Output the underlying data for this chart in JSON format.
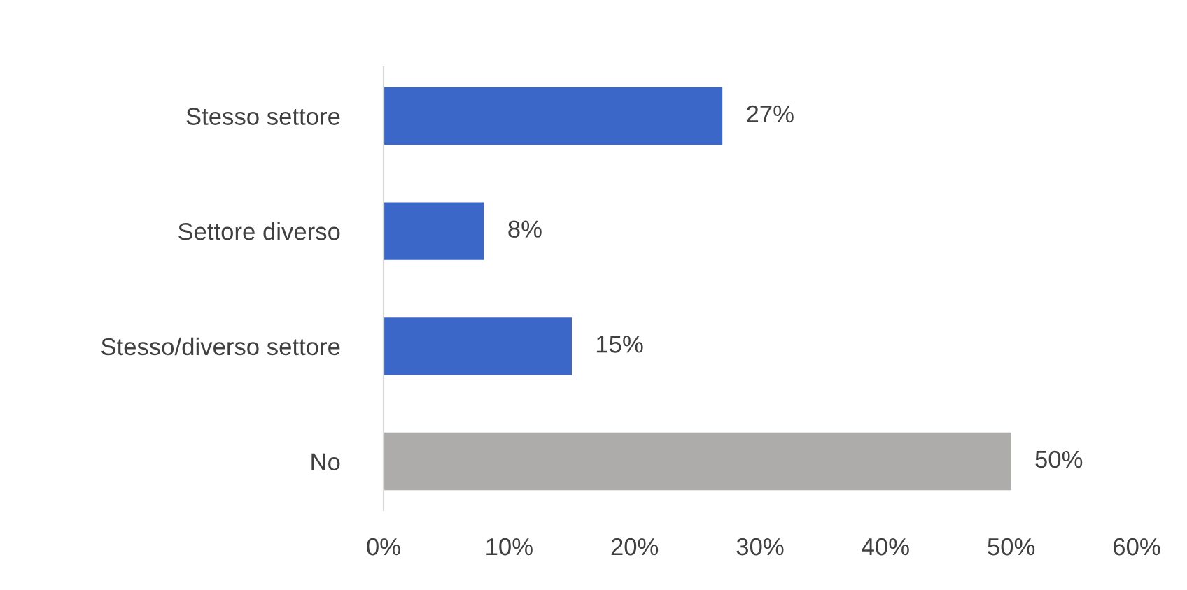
{
  "chart_data": {
    "type": "bar",
    "orientation": "horizontal",
    "categories": [
      "Stesso settore",
      "Settore diverso",
      "Stesso/diverso settore",
      "No"
    ],
    "values": [
      27,
      8,
      15,
      50
    ],
    "colors": [
      "#3b68c8",
      "#3b68c8",
      "#3b68c8",
      "#adacaa"
    ],
    "value_labels": [
      "27%",
      "8%",
      "15%",
      "50%"
    ],
    "xlim": [
      0,
      60
    ],
    "xticks": [
      {
        "value": 0,
        "label": "0%"
      },
      {
        "value": 10,
        "label": "10%"
      },
      {
        "value": 20,
        "label": "20%"
      },
      {
        "value": 30,
        "label": "30%"
      },
      {
        "value": 40,
        "label": "40%"
      },
      {
        "value": 50,
        "label": "50%"
      },
      {
        "value": 60,
        "label": "60%"
      }
    ],
    "grid": false,
    "legend": false
  }
}
